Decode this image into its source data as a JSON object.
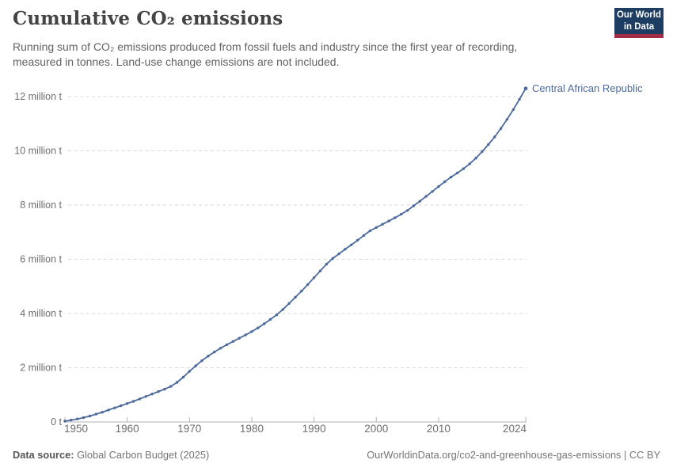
{
  "header": {
    "title": "Cumulative CO₂ emissions",
    "subtitle": "Running sum of CO₂ emissions produced from fossil fuels and industry since the first year of recording, measured in tonnes. Land-use change emissions are not included."
  },
  "logo": {
    "line1": "Our World",
    "line2": "in Data",
    "bg_color": "#1d3d63",
    "stripe_color": "#a22c47"
  },
  "footer": {
    "source_label": "Data source:",
    "source_value": "Global Carbon Budget (2025)",
    "link": "OurWorldinData.org/co2-and-greenhouse-gas-emissions | CC BY"
  },
  "chart_data": {
    "type": "line",
    "title": "Cumulative CO₂ emissions",
    "entity_label": "Central African Republic",
    "unit": "million t",
    "line_color": "#4C6A9C",
    "grid": "horizontal-dashed",
    "xlim": [
      1950,
      2024
    ],
    "ylim": [
      0,
      12
    ],
    "x_ticks": [
      1950,
      1960,
      1970,
      1980,
      1990,
      2000,
      2010,
      2024
    ],
    "y_ticks": [
      {
        "value": 0,
        "label": "0 t"
      },
      {
        "value": 2,
        "label": "2 million t"
      },
      {
        "value": 4,
        "label": "4 million t"
      },
      {
        "value": 6,
        "label": "6 million t"
      },
      {
        "value": 8,
        "label": "8 million t"
      },
      {
        "value": 10,
        "label": "10 million t"
      },
      {
        "value": 12,
        "label": "12 million t"
      }
    ],
    "series": [
      {
        "name": "Central African Republic",
        "x": [
          1950,
          1951,
          1952,
          1953,
          1954,
          1955,
          1956,
          1957,
          1958,
          1959,
          1960,
          1961,
          1962,
          1963,
          1964,
          1965,
          1966,
          1967,
          1968,
          1969,
          1970,
          1971,
          1972,
          1973,
          1974,
          1975,
          1976,
          1977,
          1978,
          1979,
          1980,
          1981,
          1982,
          1983,
          1984,
          1985,
          1986,
          1987,
          1988,
          1989,
          1990,
          1991,
          1992,
          1993,
          1994,
          1995,
          1996,
          1997,
          1998,
          1999,
          2000,
          2001,
          2002,
          2003,
          2004,
          2005,
          2006,
          2007,
          2008,
          2009,
          2010,
          2011,
          2012,
          2013,
          2014,
          2015,
          2016,
          2017,
          2018,
          2019,
          2020,
          2021,
          2022,
          2023,
          2024
        ],
        "values": [
          0.03,
          0.07,
          0.11,
          0.16,
          0.22,
          0.29,
          0.36,
          0.44,
          0.52,
          0.6,
          0.68,
          0.76,
          0.85,
          0.94,
          1.03,
          1.12,
          1.21,
          1.31,
          1.46,
          1.65,
          1.87,
          2.07,
          2.26,
          2.43,
          2.58,
          2.72,
          2.85,
          2.97,
          3.09,
          3.21,
          3.33,
          3.47,
          3.62,
          3.78,
          3.95,
          4.15,
          4.37,
          4.6,
          4.83,
          5.07,
          5.32,
          5.57,
          5.82,
          6.03,
          6.2,
          6.37,
          6.53,
          6.7,
          6.88,
          7.05,
          7.17,
          7.29,
          7.41,
          7.53,
          7.66,
          7.8,
          7.97,
          8.14,
          8.32,
          8.5,
          8.68,
          8.86,
          9.03,
          9.18,
          9.34,
          9.52,
          9.73,
          9.97,
          10.23,
          10.51,
          10.82,
          11.16,
          11.52,
          11.9,
          12.3
        ]
      }
    ],
    "style_colors": {
      "gridline": "#d9d9d9",
      "axis": "#b3b3b3",
      "tick_label": "#6e6e6e"
    }
  }
}
